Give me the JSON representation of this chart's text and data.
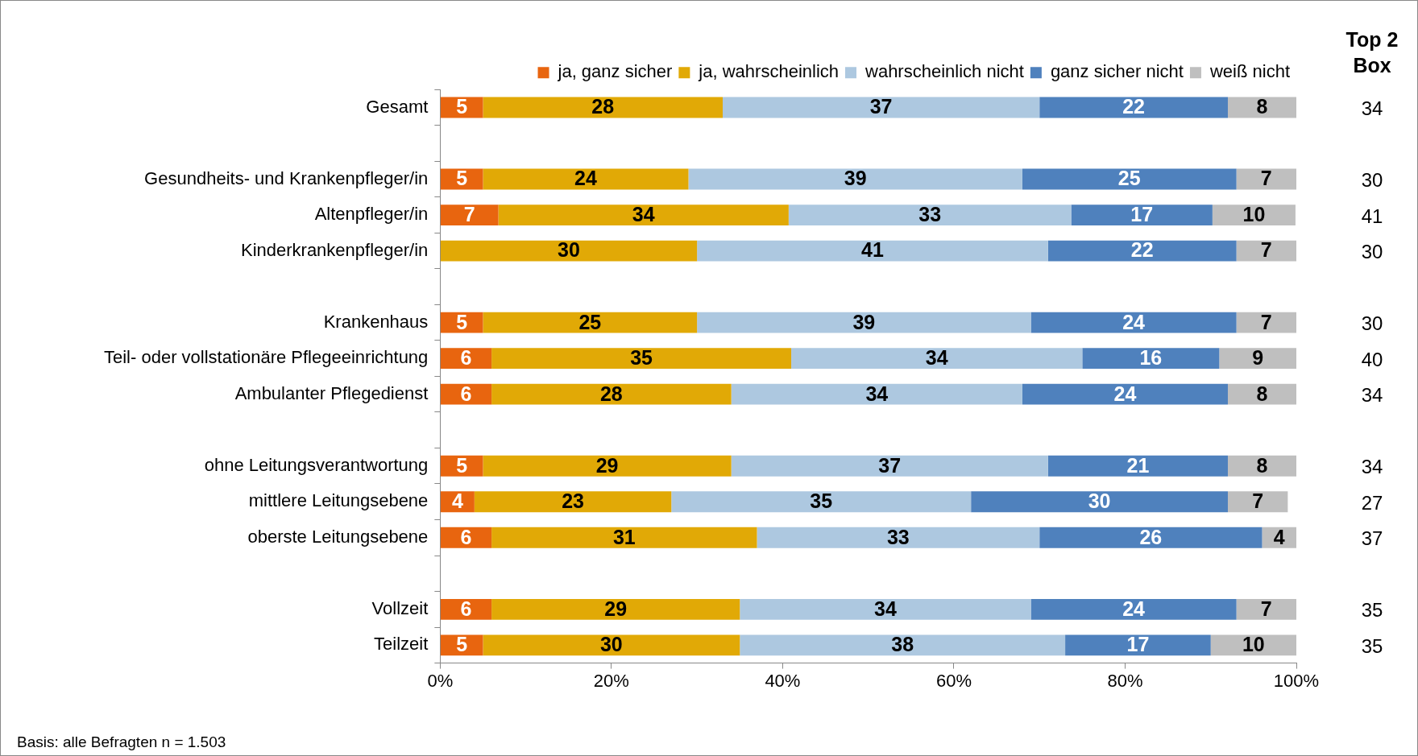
{
  "chart_data": {
    "type": "bar",
    "orientation": "horizontal",
    "stacked": true,
    "legend": "top right",
    "categories": [
      "Gesamt",
      null,
      "Gesundheits- und Krankenpfleger/in",
      "Altenpfleger/in",
      "Kinderkrankenpfleger/in",
      null,
      "Krankenhaus",
      "Teil- oder vollstationäre Pflegeeinrichtung",
      "Ambulanter Pflegedienst",
      null,
      "ohne Leitungsverantwortung",
      "mittlere Leitungsebene",
      "oberste Leitungsebene",
      null,
      "Vollzeit",
      "Teilzeit"
    ],
    "series": [
      {
        "name": "ja, ganz sicher",
        "color": "#e8650f",
        "values": [
          5,
          null,
          5,
          6.8,
          null,
          null,
          5,
          6,
          6,
          null,
          5,
          4,
          6,
          null,
          6,
          5
        ],
        "value_labels": [
          "5",
          null,
          "5",
          "7",
          null,
          null,
          "5",
          "6",
          "6",
          null,
          "5",
          "4",
          "6",
          null,
          "6",
          "5"
        ]
      },
      {
        "name": "ja, wahrscheinlich",
        "color": "#e1a906",
        "values": [
          28,
          null,
          24,
          33.9,
          30,
          null,
          25,
          35,
          28,
          null,
          29,
          23,
          31,
          null,
          29,
          30
        ],
        "value_labels": [
          "28",
          null,
          "24",
          "34",
          "30",
          null,
          "25",
          "35",
          "28",
          null,
          "29",
          "23",
          "31",
          null,
          "29",
          "30"
        ]
      },
      {
        "name": "wahrscheinlich nicht",
        "color": "#adc8e0",
        "values": [
          37,
          null,
          39,
          33,
          41,
          null,
          39,
          34,
          34,
          null,
          37,
          35,
          33,
          null,
          34,
          38
        ],
        "value_labels": [
          "37",
          null,
          "39",
          "33",
          "41",
          null,
          "39",
          "34",
          "34",
          null,
          "37",
          "35",
          "33",
          null,
          "34",
          "38"
        ]
      },
      {
        "name": "ganz sicher nicht",
        "color": "#4f81bd",
        "values": [
          22,
          null,
          25,
          16.5,
          22,
          null,
          24,
          16,
          24,
          null,
          21,
          30,
          26,
          null,
          24,
          17
        ],
        "value_labels": [
          "22",
          null,
          "25",
          "17",
          "22",
          null,
          "24",
          "16",
          "24",
          null,
          "21",
          "30",
          "26",
          null,
          "24",
          "17"
        ]
      },
      {
        "name": "weiß nicht",
        "color": "#bfbfbf",
        "values": [
          8,
          null,
          7,
          9.7,
          7,
          null,
          7,
          9,
          8,
          null,
          8,
          7,
          4,
          null,
          7,
          10
        ],
        "value_labels": [
          "8",
          null,
          "7",
          "10",
          "7",
          null,
          "7",
          "9",
          "8",
          null,
          "8",
          "7",
          "4",
          null,
          "7",
          "10"
        ]
      }
    ],
    "xlim": [
      0,
      100
    ],
    "xticks": [
      {
        "value": 0,
        "label": "0%"
      },
      {
        "value": 20,
        "label": "20%"
      },
      {
        "value": 40,
        "label": "40%"
      },
      {
        "value": 60,
        "label": "60%"
      },
      {
        "value": 80,
        "label": "80%"
      },
      {
        "value": 100,
        "label": "100%"
      }
    ],
    "annotations": [
      "Top 2 Box",
      "34",
      "30",
      "41",
      "30",
      "30",
      "40",
      "34",
      "34",
      "27",
      "37",
      "35",
      "35",
      "Basis: alle Befragten n = 1.503"
    ]
  }
}
